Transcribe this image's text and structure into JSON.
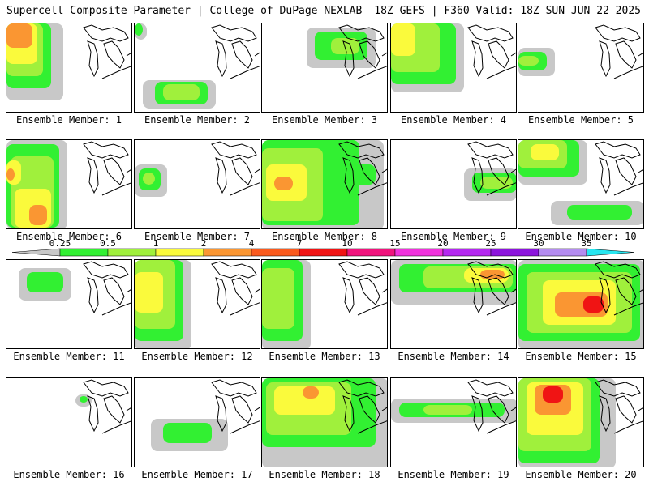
{
  "header": {
    "title": "Supercell Composite Parameter | College of DuPage NEXLAB",
    "run": "18Z GEFS | F360 Valid: 18Z SUN JUN 22 2025"
  },
  "colorbar": {
    "ticks": [
      "0.25",
      "0.5",
      "1",
      "2",
      "4",
      "7",
      "10",
      "15",
      "20",
      "25",
      "30",
      "35"
    ],
    "colors": [
      "#c8c8c8",
      "#32f032",
      "#a0f03c",
      "#fafa3c",
      "#fa9632",
      "#fa5a1e",
      "#f01414",
      "#f0147d",
      "#f032dc",
      "#b428f0",
      "#8c14dc",
      "#b48cf0",
      "#28e6f0"
    ]
  },
  "member_label_prefix": "Ensemble Member:",
  "members": [
    {
      "number": "1",
      "label": "Ensemble Member: 1"
    },
    {
      "number": "2",
      "label": "Ensemble Member: 2"
    },
    {
      "number": "3",
      "label": "Ensemble Member: 3"
    },
    {
      "number": "4",
      "label": "Ensemble Member: 4"
    },
    {
      "number": "5",
      "label": "Ensemble Member: 5"
    },
    {
      "number": "6",
      "label": "Ensemble Member: 6"
    },
    {
      "number": "7",
      "label": "Ensemble Member: 7"
    },
    {
      "number": "8",
      "label": "Ensemble Member: 8"
    },
    {
      "number": "9",
      "label": "Ensemble Member: 9"
    },
    {
      "number": "10",
      "label": "Ensemble Member: 10"
    },
    {
      "number": "11",
      "label": "Ensemble Member: 11"
    },
    {
      "number": "12",
      "label": "Ensemble Member: 12"
    },
    {
      "number": "13",
      "label": "Ensemble Member: 13"
    },
    {
      "number": "14",
      "label": "Ensemble Member: 14"
    },
    {
      "number": "15",
      "label": "Ensemble Member: 15"
    },
    {
      "number": "16",
      "label": "Ensemble Member: 16"
    },
    {
      "number": "17",
      "label": "Ensemble Member: 17"
    },
    {
      "number": "18",
      "label": "Ensemble Member: 18"
    },
    {
      "number": "19",
      "label": "Ensemble Member: 19"
    },
    {
      "number": "20",
      "label": "Ensemble Member: 20"
    }
  ]
}
